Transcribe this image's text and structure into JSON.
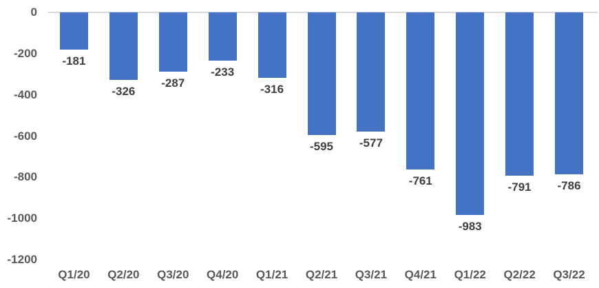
{
  "chart_data": {
    "type": "bar",
    "title": "",
    "xlabel": "",
    "ylabel": "",
    "categories": [
      "Q1/20",
      "Q2/20",
      "Q3/20",
      "Q4/20",
      "Q1/21",
      "Q2/21",
      "Q3/21",
      "Q4/21",
      "Q1/22",
      "Q2/22",
      "Q3/22"
    ],
    "values": [
      -181,
      -326,
      -287,
      -233,
      -316,
      -595,
      -577,
      -761,
      -983,
      -791,
      -786
    ],
    "data_labels": [
      "-181",
      "-326",
      "-287",
      "-233",
      "-316",
      "-595",
      "-577",
      "-761",
      "-983",
      "-791",
      "-786"
    ],
    "ylim": [
      -1200,
      0
    ],
    "y_ticks": [
      0,
      -200,
      -400,
      -600,
      -800,
      -1000,
      -1200
    ],
    "y_tick_labels": [
      "0",
      "-200",
      "-400",
      "-600",
      "-800",
      "-1000",
      "-1200"
    ],
    "grid": "zero-line-only",
    "legend": "none",
    "colors": {
      "bar": "#4472C4",
      "tick_label": "#595959",
      "data_label": "#3F3F3F",
      "zero_line": "#D9D9D9",
      "background": "#FFFFFF"
    }
  }
}
